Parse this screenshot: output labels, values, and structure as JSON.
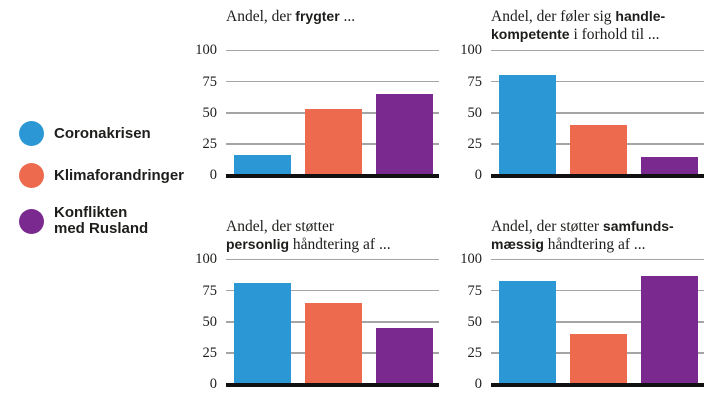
{
  "colors": {
    "background": "#ffffff",
    "text": "#1d1d1b",
    "gridline": "#a5a5a5",
    "baseline": "#111111",
    "series": [
      "#2b97d4",
      "#ee6a4e",
      "#7a2a8e"
    ]
  },
  "legend": {
    "items": [
      {
        "label": "Coronakrisen"
      },
      {
        "label": "Klimaforandringer"
      },
      {
        "label": "Konflikten med Rusland"
      }
    ]
  },
  "axis": {
    "ticks": [
      "100",
      "75",
      "50",
      "25",
      "0"
    ],
    "min": 0,
    "max": 100,
    "grid": true
  },
  "chart_data": [
    {
      "type": "bar",
      "title": "Andel, der frygter ...",
      "title_lines": [
        [
          {
            "t": "Andel, der ",
            "b": false
          },
          {
            "t": "frygter",
            "b": true
          },
          {
            "t": " ...",
            "b": false
          }
        ]
      ],
      "categories": [
        "Coronakrisen",
        "Klimaforandringer",
        "Konflikten med Rusland"
      ],
      "values": [
        17,
        54,
        66
      ],
      "ylim": [
        0,
        100
      ]
    },
    {
      "type": "bar",
      "title": "Andel, der føler sig handlekompetente i forhold til ...",
      "title_lines": [
        [
          {
            "t": "Andel, der føler sig ",
            "b": false
          },
          {
            "t": "handle-",
            "b": true
          }
        ],
        [
          {
            "t": "kompetente",
            "b": true
          },
          {
            "t": " i forhold til ...",
            "b": false
          }
        ]
      ],
      "categories": [
        "Coronakrisen",
        "Klimaforandringer",
        "Konflikten med Rusland"
      ],
      "values": [
        81,
        41,
        15
      ],
      "ylim": [
        0,
        100
      ]
    },
    {
      "type": "bar",
      "title": "Andel, der støtter personlig håndtering af ...",
      "title_lines": [
        [
          {
            "t": "Andel, der støtter",
            "b": false
          }
        ],
        [
          {
            "t": "personlig",
            "b": true
          },
          {
            "t": " håndtering af ...",
            "b": false
          }
        ]
      ],
      "categories": [
        "Coronakrisen",
        "Klimaforandringer",
        "Konflikten med Rusland"
      ],
      "values": [
        82,
        66,
        46
      ],
      "ylim": [
        0,
        100
      ]
    },
    {
      "type": "bar",
      "title": "Andel, der støtter samfundsmæssig håndtering af ...",
      "title_lines": [
        [
          {
            "t": "Andel, der støtter ",
            "b": false
          },
          {
            "t": "samfunds-",
            "b": true
          }
        ],
        [
          {
            "t": "mæssig",
            "b": true
          },
          {
            "t": " håndtering af ...",
            "b": false
          }
        ]
      ],
      "categories": [
        "Coronakrisen",
        "Klimaforandringer",
        "Konflikten med Rusland"
      ],
      "values": [
        83,
        41,
        87
      ],
      "ylim": [
        0,
        100
      ]
    }
  ]
}
